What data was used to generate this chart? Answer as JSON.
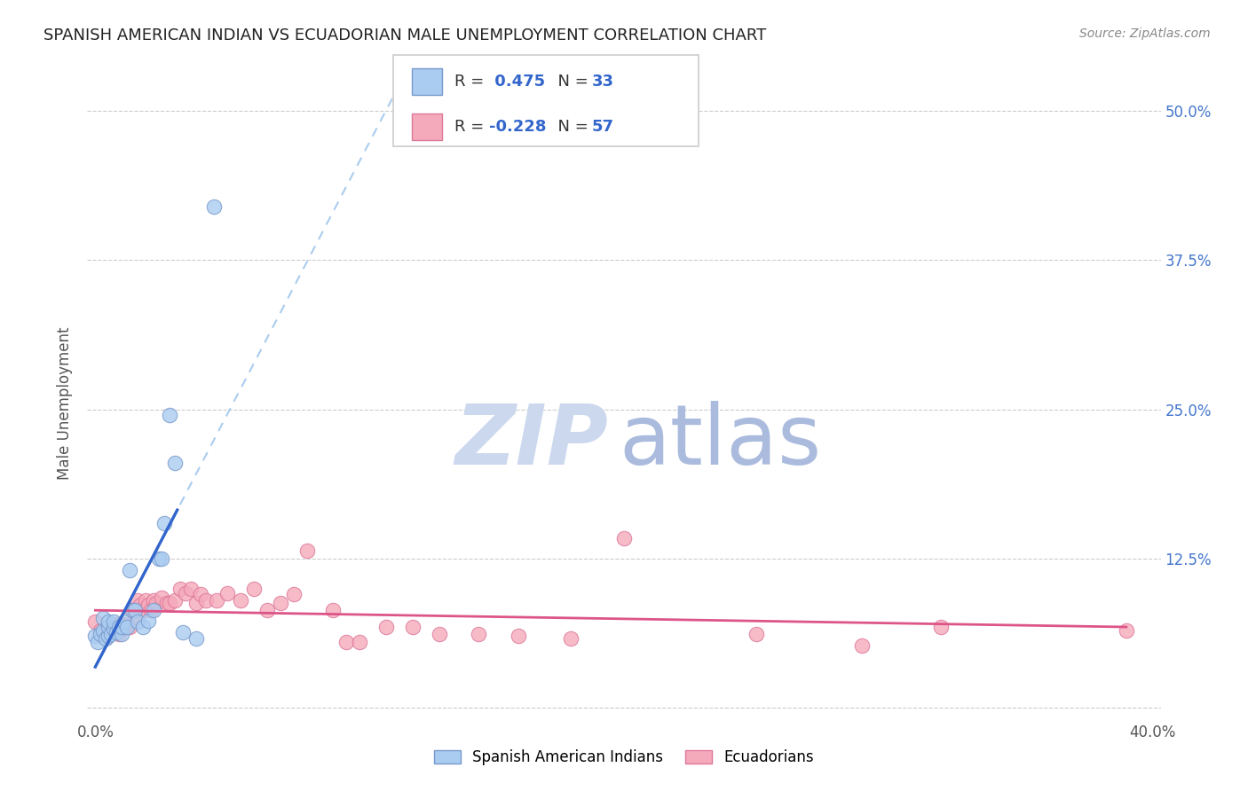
{
  "title": "SPANISH AMERICAN INDIAN VS ECUADORIAN MALE UNEMPLOYMENT CORRELATION CHART",
  "source": "Source: ZipAtlas.com",
  "ylabel": "Male Unemployment",
  "xlim": [
    -0.003,
    0.403
  ],
  "ylim": [
    -0.01,
    0.52
  ],
  "xtick_positions": [
    0.0,
    0.1,
    0.2,
    0.3,
    0.4
  ],
  "xticklabels": [
    "0.0%",
    "",
    "",
    "",
    "40.0%"
  ],
  "ytick_positions": [
    0.0,
    0.125,
    0.25,
    0.375,
    0.5
  ],
  "yticklabels_right": [
    "",
    "12.5%",
    "25.0%",
    "37.5%",
    "50.0%"
  ],
  "grid_color": "#cccccc",
  "background_color": "#ffffff",
  "legend_R1": "0.475",
  "legend_N1": "33",
  "legend_R2": "-0.228",
  "legend_N2": "57",
  "series1_color": "#aaccf0",
  "series1_edge": "#7799cc",
  "series2_color": "#f5aabb",
  "series2_edge": "#dd7799",
  "trendline1_color": "#3366cc",
  "trendline1_dash_color": "#aaccee",
  "trendline2_color": "#dd5588",
  "watermark_zip_color": "#ccd8ee",
  "watermark_atlas_color": "#aabbdd",
  "series1_x": [
    0.0,
    0.001,
    0.002,
    0.003,
    0.003,
    0.004,
    0.005,
    0.005,
    0.005,
    0.006,
    0.007,
    0.007,
    0.008,
    0.009,
    0.01,
    0.01,
    0.011,
    0.012,
    0.013,
    0.014,
    0.015,
    0.016,
    0.018,
    0.02,
    0.022,
    0.024,
    0.025,
    0.026,
    0.028,
    0.03,
    0.033,
    0.038,
    0.045
  ],
  "series1_y": [
    0.06,
    0.055,
    0.062,
    0.065,
    0.075,
    0.058,
    0.06,
    0.068,
    0.072,
    0.062,
    0.066,
    0.072,
    0.063,
    0.068,
    0.062,
    0.068,
    0.072,
    0.068,
    0.115,
    0.082,
    0.082,
    0.072,
    0.068,
    0.073,
    0.082,
    0.125,
    0.125,
    0.155,
    0.245,
    0.205,
    0.063,
    0.058,
    0.42
  ],
  "series2_x": [
    0.0,
    0.002,
    0.003,
    0.004,
    0.005,
    0.006,
    0.007,
    0.008,
    0.009,
    0.01,
    0.01,
    0.011,
    0.012,
    0.013,
    0.014,
    0.015,
    0.015,
    0.016,
    0.017,
    0.018,
    0.019,
    0.02,
    0.021,
    0.022,
    0.023,
    0.025,
    0.027,
    0.028,
    0.03,
    0.032,
    0.034,
    0.036,
    0.038,
    0.04,
    0.042,
    0.046,
    0.05,
    0.055,
    0.06,
    0.065,
    0.07,
    0.075,
    0.08,
    0.09,
    0.095,
    0.1,
    0.11,
    0.12,
    0.13,
    0.145,
    0.16,
    0.18,
    0.2,
    0.25,
    0.29,
    0.32,
    0.39
  ],
  "series2_y": [
    0.072,
    0.065,
    0.062,
    0.065,
    0.062,
    0.065,
    0.068,
    0.07,
    0.062,
    0.066,
    0.07,
    0.068,
    0.07,
    0.068,
    0.082,
    0.076,
    0.082,
    0.09,
    0.086,
    0.082,
    0.09,
    0.086,
    0.082,
    0.09,
    0.088,
    0.092,
    0.088,
    0.088,
    0.09,
    0.1,
    0.096,
    0.1,
    0.088,
    0.095,
    0.09,
    0.09,
    0.096,
    0.09,
    0.1,
    0.082,
    0.088,
    0.095,
    0.132,
    0.082,
    0.055,
    0.055,
    0.068,
    0.068,
    0.062,
    0.062,
    0.06,
    0.058,
    0.142,
    0.062,
    0.052,
    0.068,
    0.065
  ]
}
